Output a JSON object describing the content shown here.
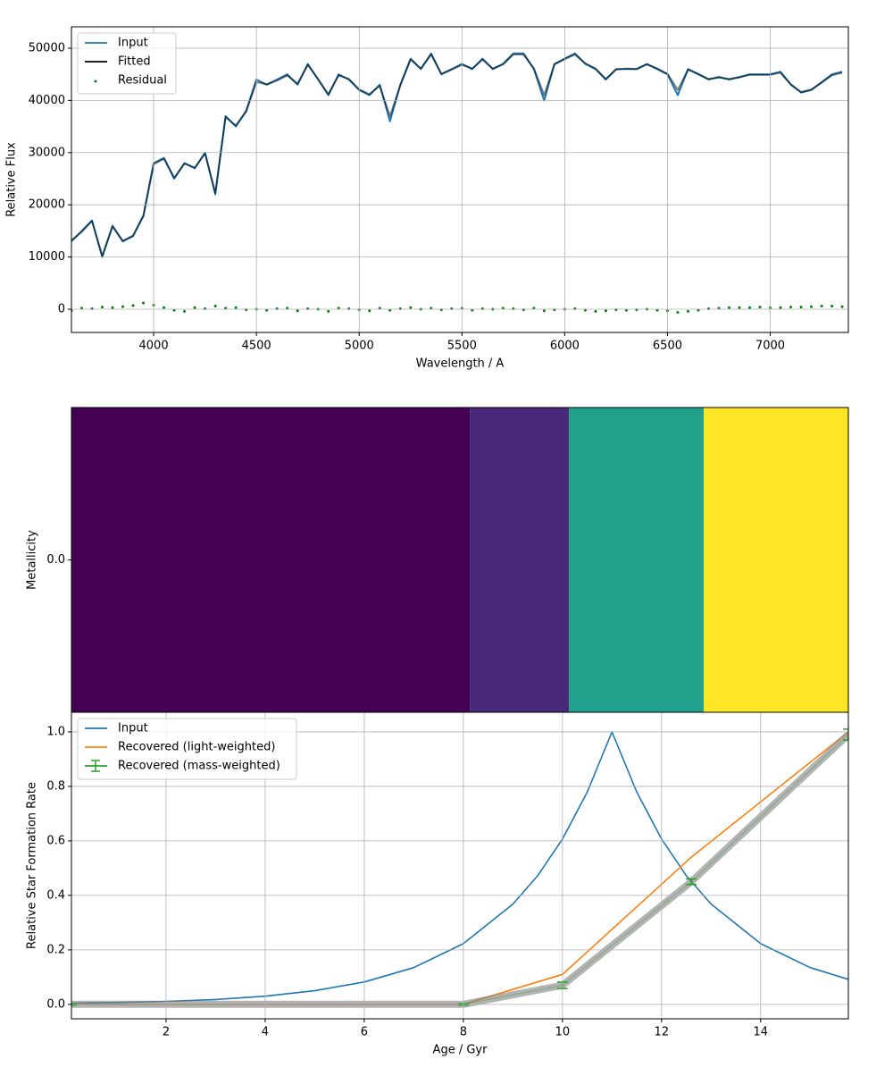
{
  "chart_data": [
    {
      "type": "line",
      "xlabel": "Wavelength / A",
      "ylabel": "Relative Flux",
      "xlim": [
        3600,
        7380
      ],
      "ylim": [
        -4450,
        54100
      ],
      "xticks": [
        4000,
        4500,
        5000,
        5500,
        6000,
        6500,
        7000
      ],
      "yticks": [
        0,
        10000,
        20000,
        30000,
        40000,
        50000
      ],
      "grid": true,
      "legend": "upper left",
      "x": [
        3600,
        3650,
        3700,
        3750,
        3800,
        3850,
        3900,
        3950,
        4000,
        4050,
        4100,
        4150,
        4200,
        4250,
        4300,
        4350,
        4400,
        4450,
        4500,
        4550,
        4600,
        4650,
        4700,
        4750,
        4800,
        4850,
        4900,
        4950,
        5000,
        5050,
        5100,
        5150,
        5200,
        5250,
        5300,
        5350,
        5400,
        5450,
        5500,
        5550,
        5600,
        5650,
        5700,
        5750,
        5800,
        5850,
        5900,
        5950,
        6000,
        6050,
        6100,
        6150,
        6200,
        6250,
        6300,
        6350,
        6400,
        6450,
        6500,
        6550,
        6600,
        6650,
        6700,
        6750,
        6800,
        6850,
        6900,
        6950,
        7000,
        7050,
        7100,
        7150,
        7200,
        7250,
        7300,
        7350
      ],
      "series": [
        {
          "name": "Input",
          "color": "#1f77b4",
          "style": "line",
          "values": [
            13000,
            15000,
            17000,
            10000,
            16000,
            13000,
            14000,
            18000,
            28000,
            29000,
            25000,
            28000,
            27000,
            30000,
            22000,
            37000,
            35000,
            38000,
            44000,
            43000,
            44000,
            45000,
            43000,
            47000,
            44000,
            41000,
            45000,
            44000,
            42000,
            41000,
            43000,
            36000,
            43000,
            48000,
            46000,
            49000,
            45000,
            46000,
            47000,
            46000,
            48000,
            46000,
            47000,
            49000,
            49000,
            46000,
            40000,
            47000,
            48000,
            49000,
            47000,
            46000,
            44000,
            46000,
            46000,
            46000,
            47000,
            46000,
            45000,
            41000,
            46000,
            45000,
            44000,
            44500,
            44000,
            44500,
            45000,
            45000,
            45000,
            45500,
            43000,
            41500,
            42000,
            43500,
            45000,
            45500
          ]
        },
        {
          "name": "Fitted",
          "color": "#000000",
          "alpha": 0.5,
          "style": "line",
          "values": [
            13200,
            14800,
            16900,
            10200,
            15800,
            13100,
            14100,
            17800,
            27800,
            28800,
            25200,
            27900,
            27100,
            29800,
            22300,
            36800,
            35200,
            37800,
            43500,
            43100,
            43800,
            44800,
            43200,
            46800,
            44100,
            41200,
            44800,
            44100,
            42100,
            41200,
            42800,
            37000,
            42900,
            47800,
            46100,
            48800,
            45100,
            45900,
            46800,
            46100,
            47800,
            46100,
            46900,
            48800,
            48800,
            46100,
            41000,
            46900,
            47900,
            48800,
            47100,
            46100,
            44100,
            45900,
            46100,
            46000,
            46900,
            46100,
            45100,
            42000,
            45900,
            45100,
            44100,
            44400,
            44100,
            44400,
            44900,
            44900,
            44900,
            45300,
            43100,
            41600,
            42100,
            43400,
            44800,
            45300
          ]
        },
        {
          "name": "Residual",
          "color": "#008000",
          "style": "scatter",
          "values": [
            -300,
            200,
            100,
            400,
            300,
            500,
            700,
            1200,
            800,
            300,
            -200,
            -400,
            300,
            100,
            600,
            200,
            300,
            -100,
            0,
            -200,
            100,
            200,
            -300,
            100,
            0,
            -400,
            200,
            100,
            -100,
            -300,
            200,
            -200,
            100,
            300,
            0,
            200,
            -100,
            100,
            200,
            -200,
            100,
            0,
            200,
            100,
            -100,
            200,
            -300,
            -100,
            0,
            100,
            -200,
            -400,
            -300,
            -100,
            -200,
            -100,
            0,
            -200,
            -300,
            -600,
            -400,
            -200,
            100,
            200,
            300,
            300,
            300,
            400,
            300,
            300,
            400,
            400,
            500,
            600,
            600,
            500
          ]
        }
      ]
    },
    {
      "type": "heatmap",
      "ylabel": "Metallicity",
      "xlim": [
        0.09,
        15.77
      ],
      "yticks": [
        {
          "value": 0,
          "label": "0.0"
        }
      ],
      "x_edges": [
        0.09,
        8.13,
        10.13,
        12.85,
        15.77
      ],
      "colors": [
        "#440154",
        "#482979",
        "#21a08c",
        "#fde725"
      ]
    },
    {
      "type": "line",
      "xlabel": "Age / Gyr",
      "ylabel": "Relative Star Formation Rate",
      "xlim": [
        0.09,
        15.77
      ],
      "ylim": [
        -0.053,
        1.072
      ],
      "xticks": [
        2,
        4,
        6,
        8,
        10,
        12,
        14
      ],
      "yticks": [
        {
          "value": 0,
          "label": "0.0"
        },
        0.2,
        0.4,
        0.6,
        0.8,
        {
          "value": 1,
          "label": "1.0"
        }
      ],
      "grid": true,
      "legend": "upper left",
      "series": [
        {
          "name": "Input",
          "color": "#1f77b4",
          "style": "line",
          "x": [
            0.09,
            1,
            2,
            3,
            4,
            5,
            6,
            7,
            8,
            9,
            9.5,
            10,
            10.5,
            11,
            11.5,
            12,
            12.5,
            13,
            14,
            15,
            15.77
          ],
          "values": [
            0.004,
            0.0067,
            0.011,
            0.018,
            0.03,
            0.05,
            0.082,
            0.135,
            0.223,
            0.368,
            0.472,
            0.607,
            0.779,
            1.0,
            0.779,
            0.607,
            0.472,
            0.368,
            0.223,
            0.135,
            0.092
          ]
        },
        {
          "name": "Recovered (light-weighted)",
          "color": "#ff7f0e",
          "style": "line",
          "x": [
            0.09,
            8,
            10,
            12.6,
            15.77
          ],
          "values": [
            0,
            0,
            0.11,
            0.54,
            1.0
          ]
        },
        {
          "name": "Recovered (mass-weighted)",
          "color": "#2ca02c",
          "band_color": "#808080",
          "style": "errorbar",
          "x": [
            0.09,
            8,
            10,
            12.6,
            15.77
          ],
          "values": [
            0,
            0,
            0.07,
            0.45,
            0.99
          ],
          "errors": [
            0.003,
            0.003,
            0.012,
            0.01,
            0.02
          ]
        }
      ]
    }
  ]
}
